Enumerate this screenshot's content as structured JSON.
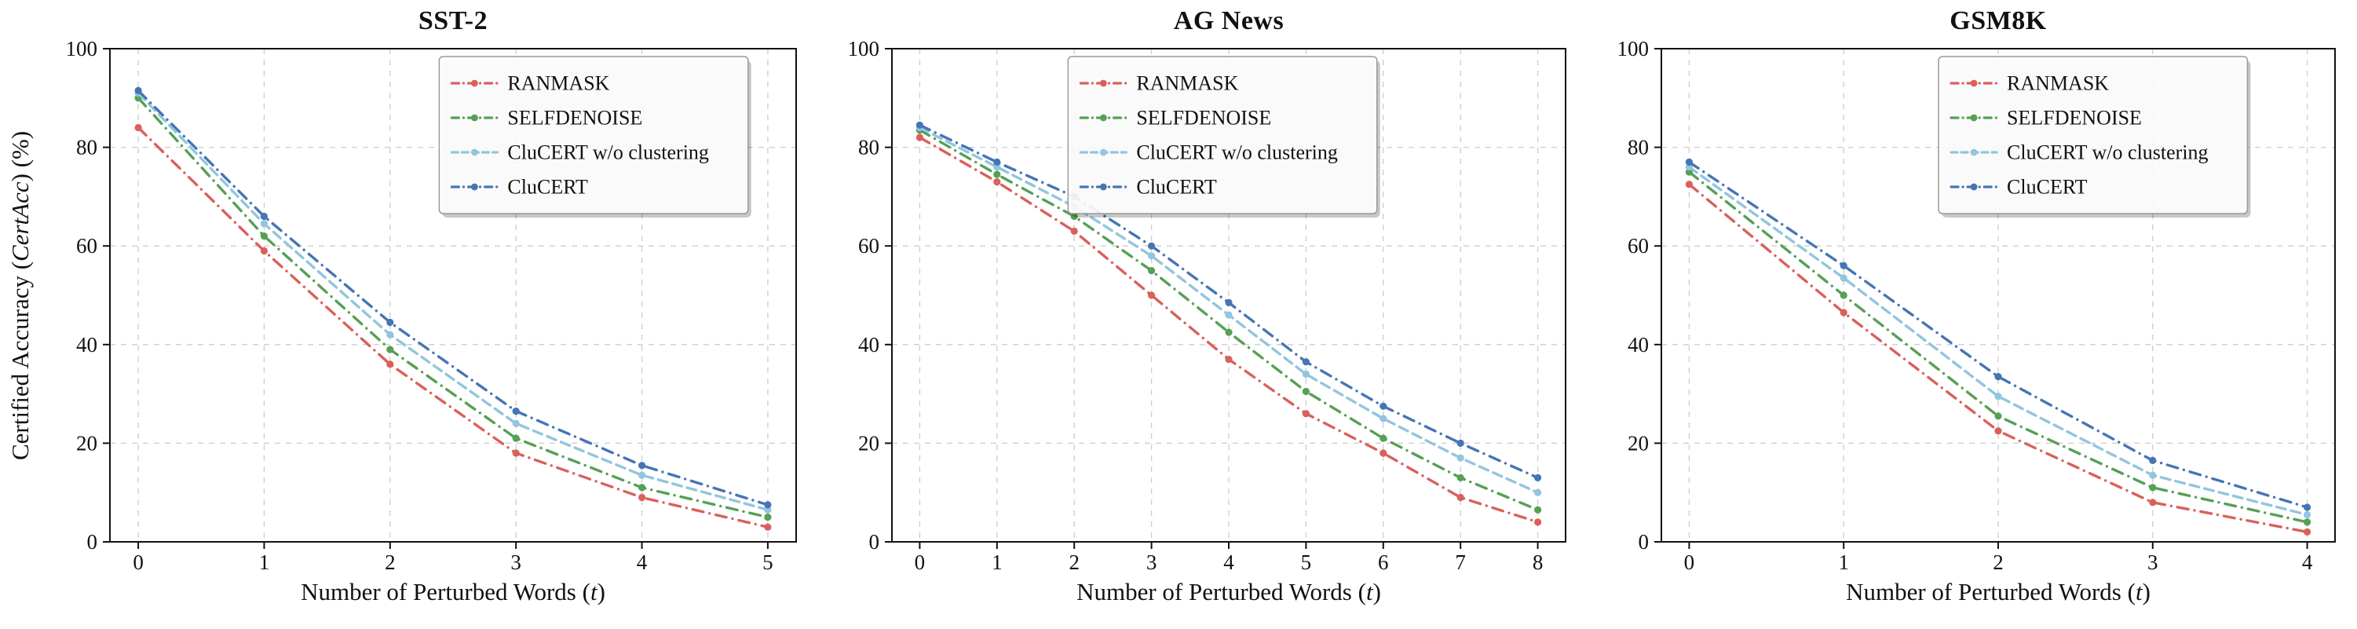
{
  "figure": {
    "ylabel_pre": "Certified Accuracy (",
    "ylabel_var": "CertAcc",
    "ylabel_post": ") (%)",
    "xlabel_pre": "Number of Perturbed Words (",
    "xlabel_var": "t",
    "xlabel_post": ")"
  },
  "style": {
    "grid_color": "#cccccc",
    "axis_color": "#111111",
    "legend_border": "#999999"
  },
  "series_meta": [
    {
      "name": "RANMASK",
      "color": "#D9605C",
      "dash": "dashdot"
    },
    {
      "name": "SELFDENOISE",
      "color": "#55A055",
      "dash": "dashdot"
    },
    {
      "name": "CluCERT w/o clustering",
      "color": "#92C5DE",
      "dash": "dashed"
    },
    {
      "name": "CluCERT",
      "color": "#4575B4",
      "dash": "dashdot"
    }
  ],
  "chart_data": [
    {
      "type": "line",
      "title": "SST-2",
      "x": [
        0,
        1,
        2,
        3,
        4,
        5
      ],
      "ylim": [
        0,
        100
      ],
      "yticks": [
        0,
        20,
        40,
        60,
        80,
        100
      ],
      "grid": true,
      "legend_position": "upper right",
      "legend_right_frac": 0.93,
      "series": [
        {
          "name": "RANMASK",
          "values": [
            84,
            59,
            36,
            18,
            9,
            3
          ]
        },
        {
          "name": "SELFDENOISE",
          "values": [
            90,
            62,
            39,
            21,
            11,
            5
          ]
        },
        {
          "name": "CluCERT w/o clustering",
          "values": [
            91,
            64.5,
            42,
            24,
            13.5,
            6.5
          ]
        },
        {
          "name": "CluCERT",
          "values": [
            91.5,
            66,
            44.5,
            26.5,
            15.5,
            7.5
          ]
        }
      ]
    },
    {
      "type": "line",
      "title": "AG News",
      "x": [
        0,
        1,
        2,
        3,
        4,
        5,
        6,
        7,
        8
      ],
      "ylim": [
        0,
        100
      ],
      "yticks": [
        0,
        20,
        40,
        60,
        80,
        100
      ],
      "grid": true,
      "legend_position": "upper center-right",
      "legend_right_frac": 0.72,
      "series": [
        {
          "name": "RANMASK",
          "values": [
            82,
            73,
            63,
            50,
            37,
            26,
            18,
            9,
            4
          ]
        },
        {
          "name": "SELFDENOISE",
          "values": [
            83.5,
            74.5,
            66,
            55,
            42.5,
            30.5,
            21,
            13,
            6.5
          ]
        },
        {
          "name": "CluCERT w/o clustering",
          "values": [
            84,
            76,
            68,
            58,
            46,
            34,
            25,
            17,
            10
          ]
        },
        {
          "name": "CluCERT",
          "values": [
            84.5,
            77,
            70,
            60,
            48.5,
            36.5,
            27.5,
            20,
            13
          ]
        }
      ]
    },
    {
      "type": "line",
      "title": "GSM8K",
      "x": [
        0,
        1,
        2,
        3,
        4
      ],
      "ylim": [
        0,
        100
      ],
      "yticks": [
        0,
        20,
        40,
        60,
        80,
        100
      ],
      "grid": true,
      "legend_position": "upper right",
      "legend_right_frac": 0.87,
      "series": [
        {
          "name": "RANMASK",
          "values": [
            72.5,
            46.5,
            22.5,
            8,
            2
          ]
        },
        {
          "name": "SELFDENOISE",
          "values": [
            75,
            50,
            25.5,
            11,
            4
          ]
        },
        {
          "name": "CluCERT w/o clustering",
          "values": [
            76,
            53.5,
            29.5,
            13.5,
            5.5
          ]
        },
        {
          "name": "CluCERT",
          "values": [
            77,
            56,
            33.5,
            16.5,
            7
          ]
        }
      ]
    }
  ]
}
